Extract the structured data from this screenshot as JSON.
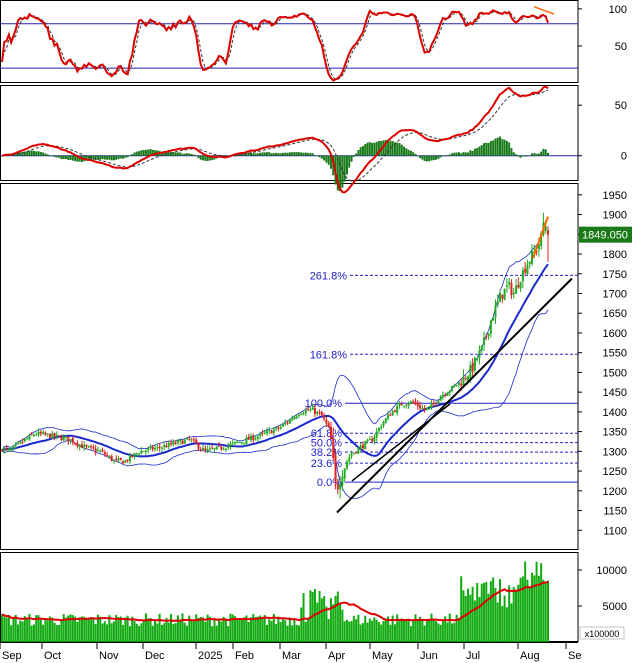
{
  "chart_data": {
    "type": "candlestick",
    "panels": [
      {
        "id": "stochastic",
        "type": "line",
        "ylim": [
          0,
          112
        ],
        "y_ticks": [
          50,
          100
        ],
        "reference_lines": [
          80,
          20
        ],
        "line_colors": {
          "k": "#dd0000",
          "d": "#333333",
          "ref": "#2222aa"
        },
        "trend_color": "#ff6600"
      },
      {
        "id": "macd",
        "type": "line+bar",
        "ylim": [
          -25,
          70
        ],
        "y_ticks": [
          0,
          50
        ],
        "line_colors": {
          "macd": "#dd0000",
          "signal": "#333333",
          "hist": "#1a7a1a",
          "zero": "#2222aa"
        }
      },
      {
        "id": "price",
        "type": "candlestick",
        "ylim": [
          1050,
          1980
        ],
        "y_ticks": [
          1100,
          1150,
          1200,
          1250,
          1300,
          1350,
          1400,
          1450,
          1500,
          1550,
          1600,
          1650,
          1700,
          1750,
          1800,
          1850,
          1900,
          1950
        ],
        "last_price_label": "1849.050",
        "last_price": 1849.05,
        "fibonacci_levels": [
          {
            "label": "261.8%",
            "value": 1746
          },
          {
            "label": "161.8%",
            "value": 1546
          },
          {
            "label": "100.0%",
            "value": 1422
          },
          {
            "label": "61.8%",
            "value": 1346
          },
          {
            "label": "50.0%",
            "value": 1322
          },
          {
            "label": "38.2%",
            "value": 1298
          },
          {
            "label": "23.6%",
            "value": 1270
          },
          {
            "label": "0.0%",
            "value": 1222
          }
        ],
        "colors": {
          "up": "#22aa22",
          "down": "#dd2222",
          "ma": "#1a2acc",
          "bands": "#1a2acc",
          "trend": "#000000",
          "fib": "#2222cc",
          "label_bg": "#1a7a1a"
        }
      },
      {
        "id": "volume",
        "type": "bar",
        "ylim": [
          0,
          12500
        ],
        "y_ticks_labels": [
          "5000",
          "10000"
        ],
        "y_ticks": [
          5000,
          10000
        ],
        "unit_label": "x100000",
        "colors": {
          "bar": "#11aa11",
          "ma": "#dd0000"
        }
      }
    ],
    "months": [
      "Sep",
      "Oct",
      "Nov",
      "Dec",
      "2025",
      "Feb",
      "Mar",
      "Apr",
      "May",
      "Jun",
      "Jul",
      "Aug",
      "Se"
    ]
  }
}
